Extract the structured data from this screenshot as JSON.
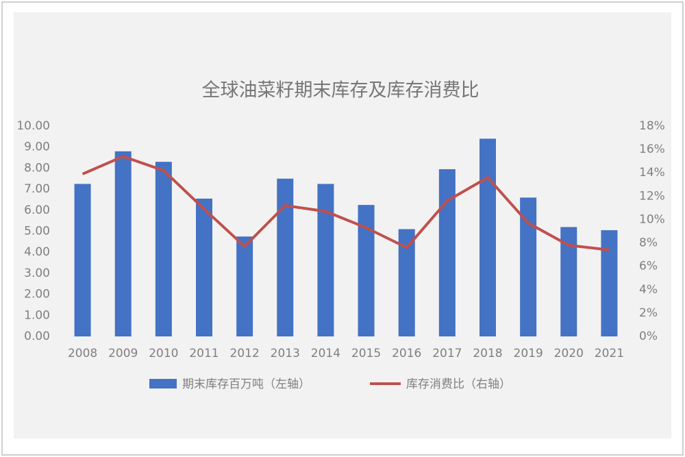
{
  "chart_data": {
    "type": "bar",
    "title": "全球油菜籽期末库存及库存消费比",
    "categories": [
      "2008",
      "2009",
      "2010",
      "2011",
      "2012",
      "2013",
      "2014",
      "2015",
      "2016",
      "2017",
      "2018",
      "2019",
      "2020",
      "2021"
    ],
    "series": [
      {
        "name": "期末库存百万吨（左轴）",
        "type": "bar",
        "axis": "y",
        "color": "#4472c4",
        "values": [
          7.25,
          8.8,
          8.3,
          6.55,
          4.75,
          7.5,
          7.25,
          6.25,
          5.1,
          7.95,
          9.4,
          6.6,
          5.2,
          5.05
        ]
      },
      {
        "name": "库存消费比（右轴）",
        "type": "line",
        "axis": "y2",
        "color": "#c0504d",
        "values": [
          13.9,
          15.4,
          14.2,
          10.9,
          7.7,
          11.2,
          10.7,
          9.3,
          7.6,
          11.6,
          13.6,
          9.7,
          7.8,
          7.4
        ]
      }
    ],
    "ylim": [
      0,
      10
    ],
    "yticks": [
      {
        "value": 0,
        "label": "0.00"
      },
      {
        "value": 1,
        "label": "1.00"
      },
      {
        "value": 2,
        "label": "2.00"
      },
      {
        "value": 3,
        "label": "3.00"
      },
      {
        "value": 4,
        "label": "4.00"
      },
      {
        "value": 5,
        "label": "5.00"
      },
      {
        "value": 6,
        "label": "6.00"
      },
      {
        "value": 7,
        "label": "7.00"
      },
      {
        "value": 8,
        "label": "8.00"
      },
      {
        "value": 9,
        "label": "9.00"
      },
      {
        "value": 10,
        "label": "10.00"
      }
    ],
    "y2lim": [
      0,
      18
    ],
    "y2ticks": [
      {
        "value": 0,
        "label": "0%"
      },
      {
        "value": 2,
        "label": "2%"
      },
      {
        "value": 4,
        "label": "4%"
      },
      {
        "value": 6,
        "label": "6%"
      },
      {
        "value": 8,
        "label": "8%"
      },
      {
        "value": 10,
        "label": "10%"
      },
      {
        "value": 12,
        "label": "12%"
      },
      {
        "value": 14,
        "label": "14%"
      },
      {
        "value": 16,
        "label": "16%"
      },
      {
        "value": 18,
        "label": "18%"
      }
    ],
    "legend": "bottom"
  }
}
